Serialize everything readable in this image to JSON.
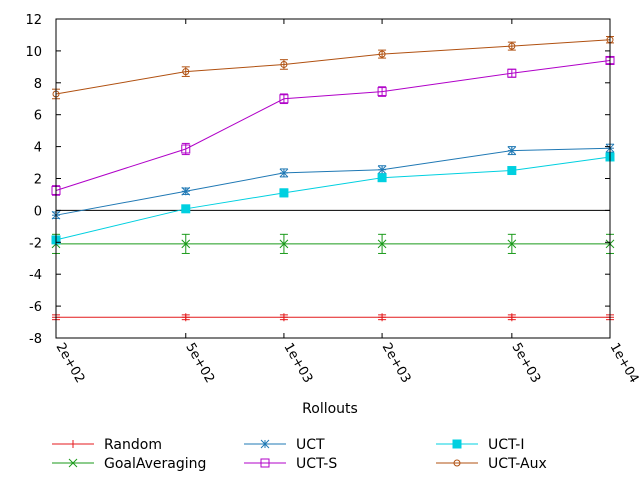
{
  "chart_data": {
    "type": "line",
    "title": "",
    "xlabel": "Rollouts",
    "ylabel": "",
    "xscale": "log",
    "x": [
      200,
      500,
      1000,
      2000,
      5000,
      10000
    ],
    "x_tick_labels": [
      "2e+02",
      "5e+02",
      "1e+03",
      "2e+03",
      "5e+03",
      "1e+04"
    ],
    "ylim": [
      -8,
      12
    ],
    "y_ticks": [
      -8,
      -6,
      -4,
      -2,
      0,
      2,
      4,
      6,
      8,
      10,
      12
    ],
    "legend_position": "bottom",
    "series": [
      {
        "name": "Random",
        "color": "#e41a1c",
        "marker": "plus",
        "values": [
          -6.7,
          -6.7,
          -6.7,
          -6.7,
          -6.7,
          -6.7
        ],
        "errors": [
          0.15,
          0.15,
          0.15,
          0.15,
          0.15,
          0.15
        ]
      },
      {
        "name": "GoalAveraging",
        "color": "#1a9a1a",
        "marker": "x",
        "values": [
          -2.1,
          -2.1,
          -2.1,
          -2.1,
          -2.1,
          -2.1
        ],
        "errors": [
          0.6,
          0.6,
          0.6,
          0.6,
          0.6,
          0.6
        ]
      },
      {
        "name": "UCT",
        "color": "#1f78b4",
        "marker": "asterisk",
        "values": [
          -0.3,
          1.2,
          2.35,
          2.55,
          3.75,
          3.9
        ],
        "errors": [
          0.2,
          0.2,
          0.25,
          0.25,
          0.25,
          0.25
        ]
      },
      {
        "name": "UCT-S",
        "color": "#b000c8",
        "marker": "square",
        "values": [
          1.25,
          3.85,
          7.0,
          7.45,
          8.6,
          9.4
        ],
        "errors": [
          0.3,
          0.35,
          0.3,
          0.3,
          0.25,
          0.2
        ]
      },
      {
        "name": "UCT-I",
        "color": "#00d0e0",
        "marker": "filled-square",
        "values": [
          -1.85,
          0.1,
          1.1,
          2.05,
          2.5,
          3.35
        ],
        "errors": [
          0.2,
          0.2,
          0.25,
          0.2,
          0.2,
          0.2
        ]
      },
      {
        "name": "UCT-Aux",
        "color": "#b05010",
        "marker": "circle",
        "values": [
          7.3,
          8.7,
          9.15,
          9.8,
          10.3,
          10.7
        ],
        "errors": [
          0.3,
          0.3,
          0.3,
          0.25,
          0.25,
          0.2
        ]
      }
    ]
  }
}
